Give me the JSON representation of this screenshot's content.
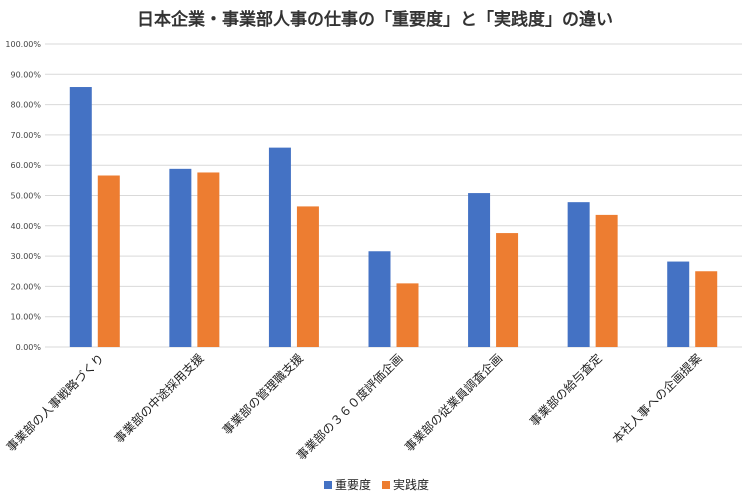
{
  "chart_data": {
    "type": "bar",
    "title": "日本企業・事業部人事の仕事の「重要度」と「実践度」の違い",
    "categories": [
      "事業部の人事戦略づくり",
      "事業部の中途採用支援",
      "事業部の管理職支援",
      "事業部の３６０度評価企画",
      "事業部の従業員調査企画",
      "事業部の給与査定",
      "本社人事への企画提案"
    ],
    "series": [
      {
        "name": "重要度",
        "values": [
          85.8,
          58.8,
          65.8,
          31.6,
          50.8,
          47.8,
          28.2
        ]
      },
      {
        "name": "実践度",
        "values": [
          56.6,
          57.6,
          46.4,
          21.0,
          37.6,
          43.6,
          25.0
        ]
      }
    ],
    "ylim": [
      0,
      100
    ],
    "yticks": [
      "0.00%",
      "10.00%",
      "20.00%",
      "30.00%",
      "40.00%",
      "50.00%",
      "60.00%",
      "70.00%",
      "80.00%",
      "90.00%",
      "100.00%"
    ],
    "grid": true,
    "legend_position": "bottom",
    "colors": {
      "重要度": "#4472c4",
      "実践度": "#ed7d31",
      "grid": "#d9d9d9"
    }
  }
}
